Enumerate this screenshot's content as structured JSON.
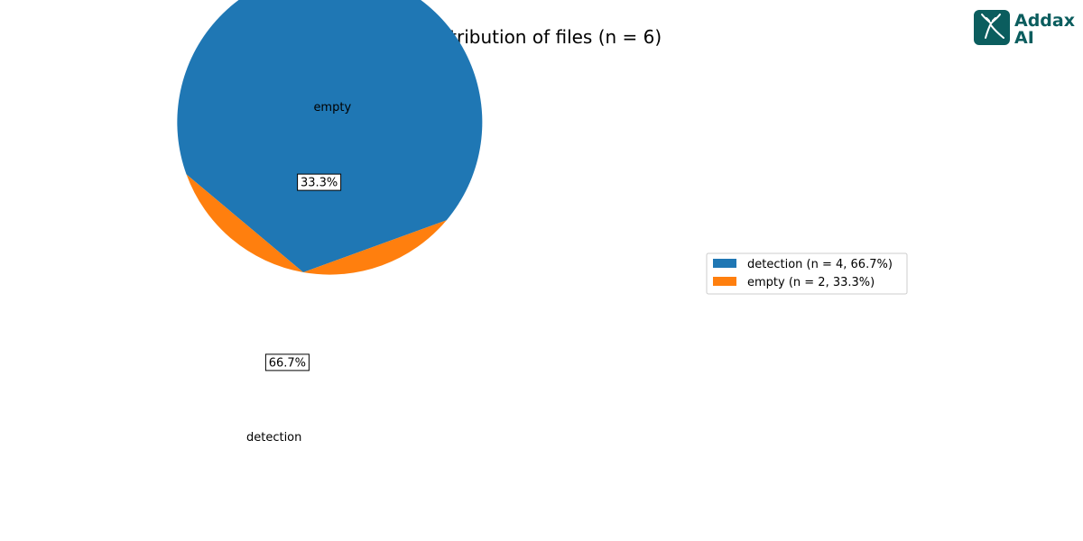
{
  "chart_data": {
    "type": "pie",
    "title": "Distribution of files (n = 6)",
    "categories": [
      "detection",
      "empty"
    ],
    "values": [
      4,
      2
    ],
    "percentages": [
      "66.7%",
      "33.3%"
    ],
    "colors": [
      "#1f77b4",
      "#ff7f0e"
    ],
    "legend": {
      "placement": "right",
      "entries": [
        "detection (n = 4, 66.7%)",
        "empty (n = 2, 33.3%)"
      ]
    }
  },
  "logo": {
    "line1": "Addax",
    "line2": "AI",
    "color": "#0b5d5e"
  }
}
